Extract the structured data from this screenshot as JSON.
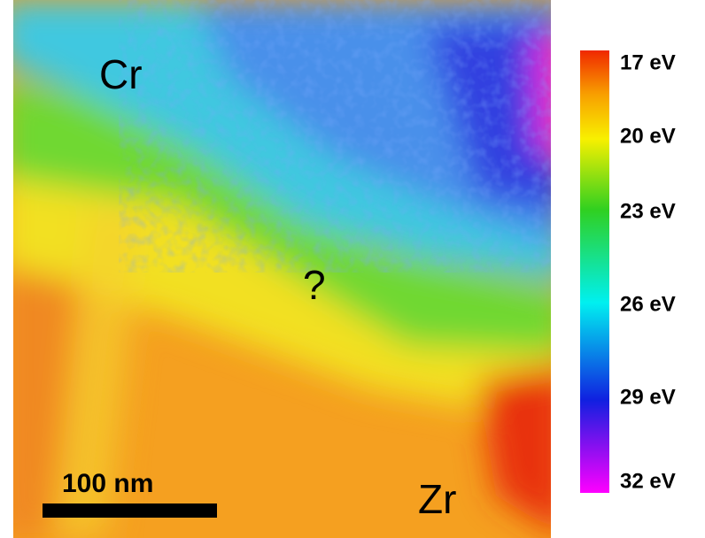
{
  "map": {
    "labels": {
      "top_left": "Cr",
      "center": "?",
      "bottom_right": "Zr"
    },
    "scale_bar": "100 nm"
  },
  "colorbar": {
    "ticks": [
      "17 eV",
      "20 eV",
      "23 eV",
      "26 eV",
      "29 eV",
      "32 eV"
    ]
  }
}
